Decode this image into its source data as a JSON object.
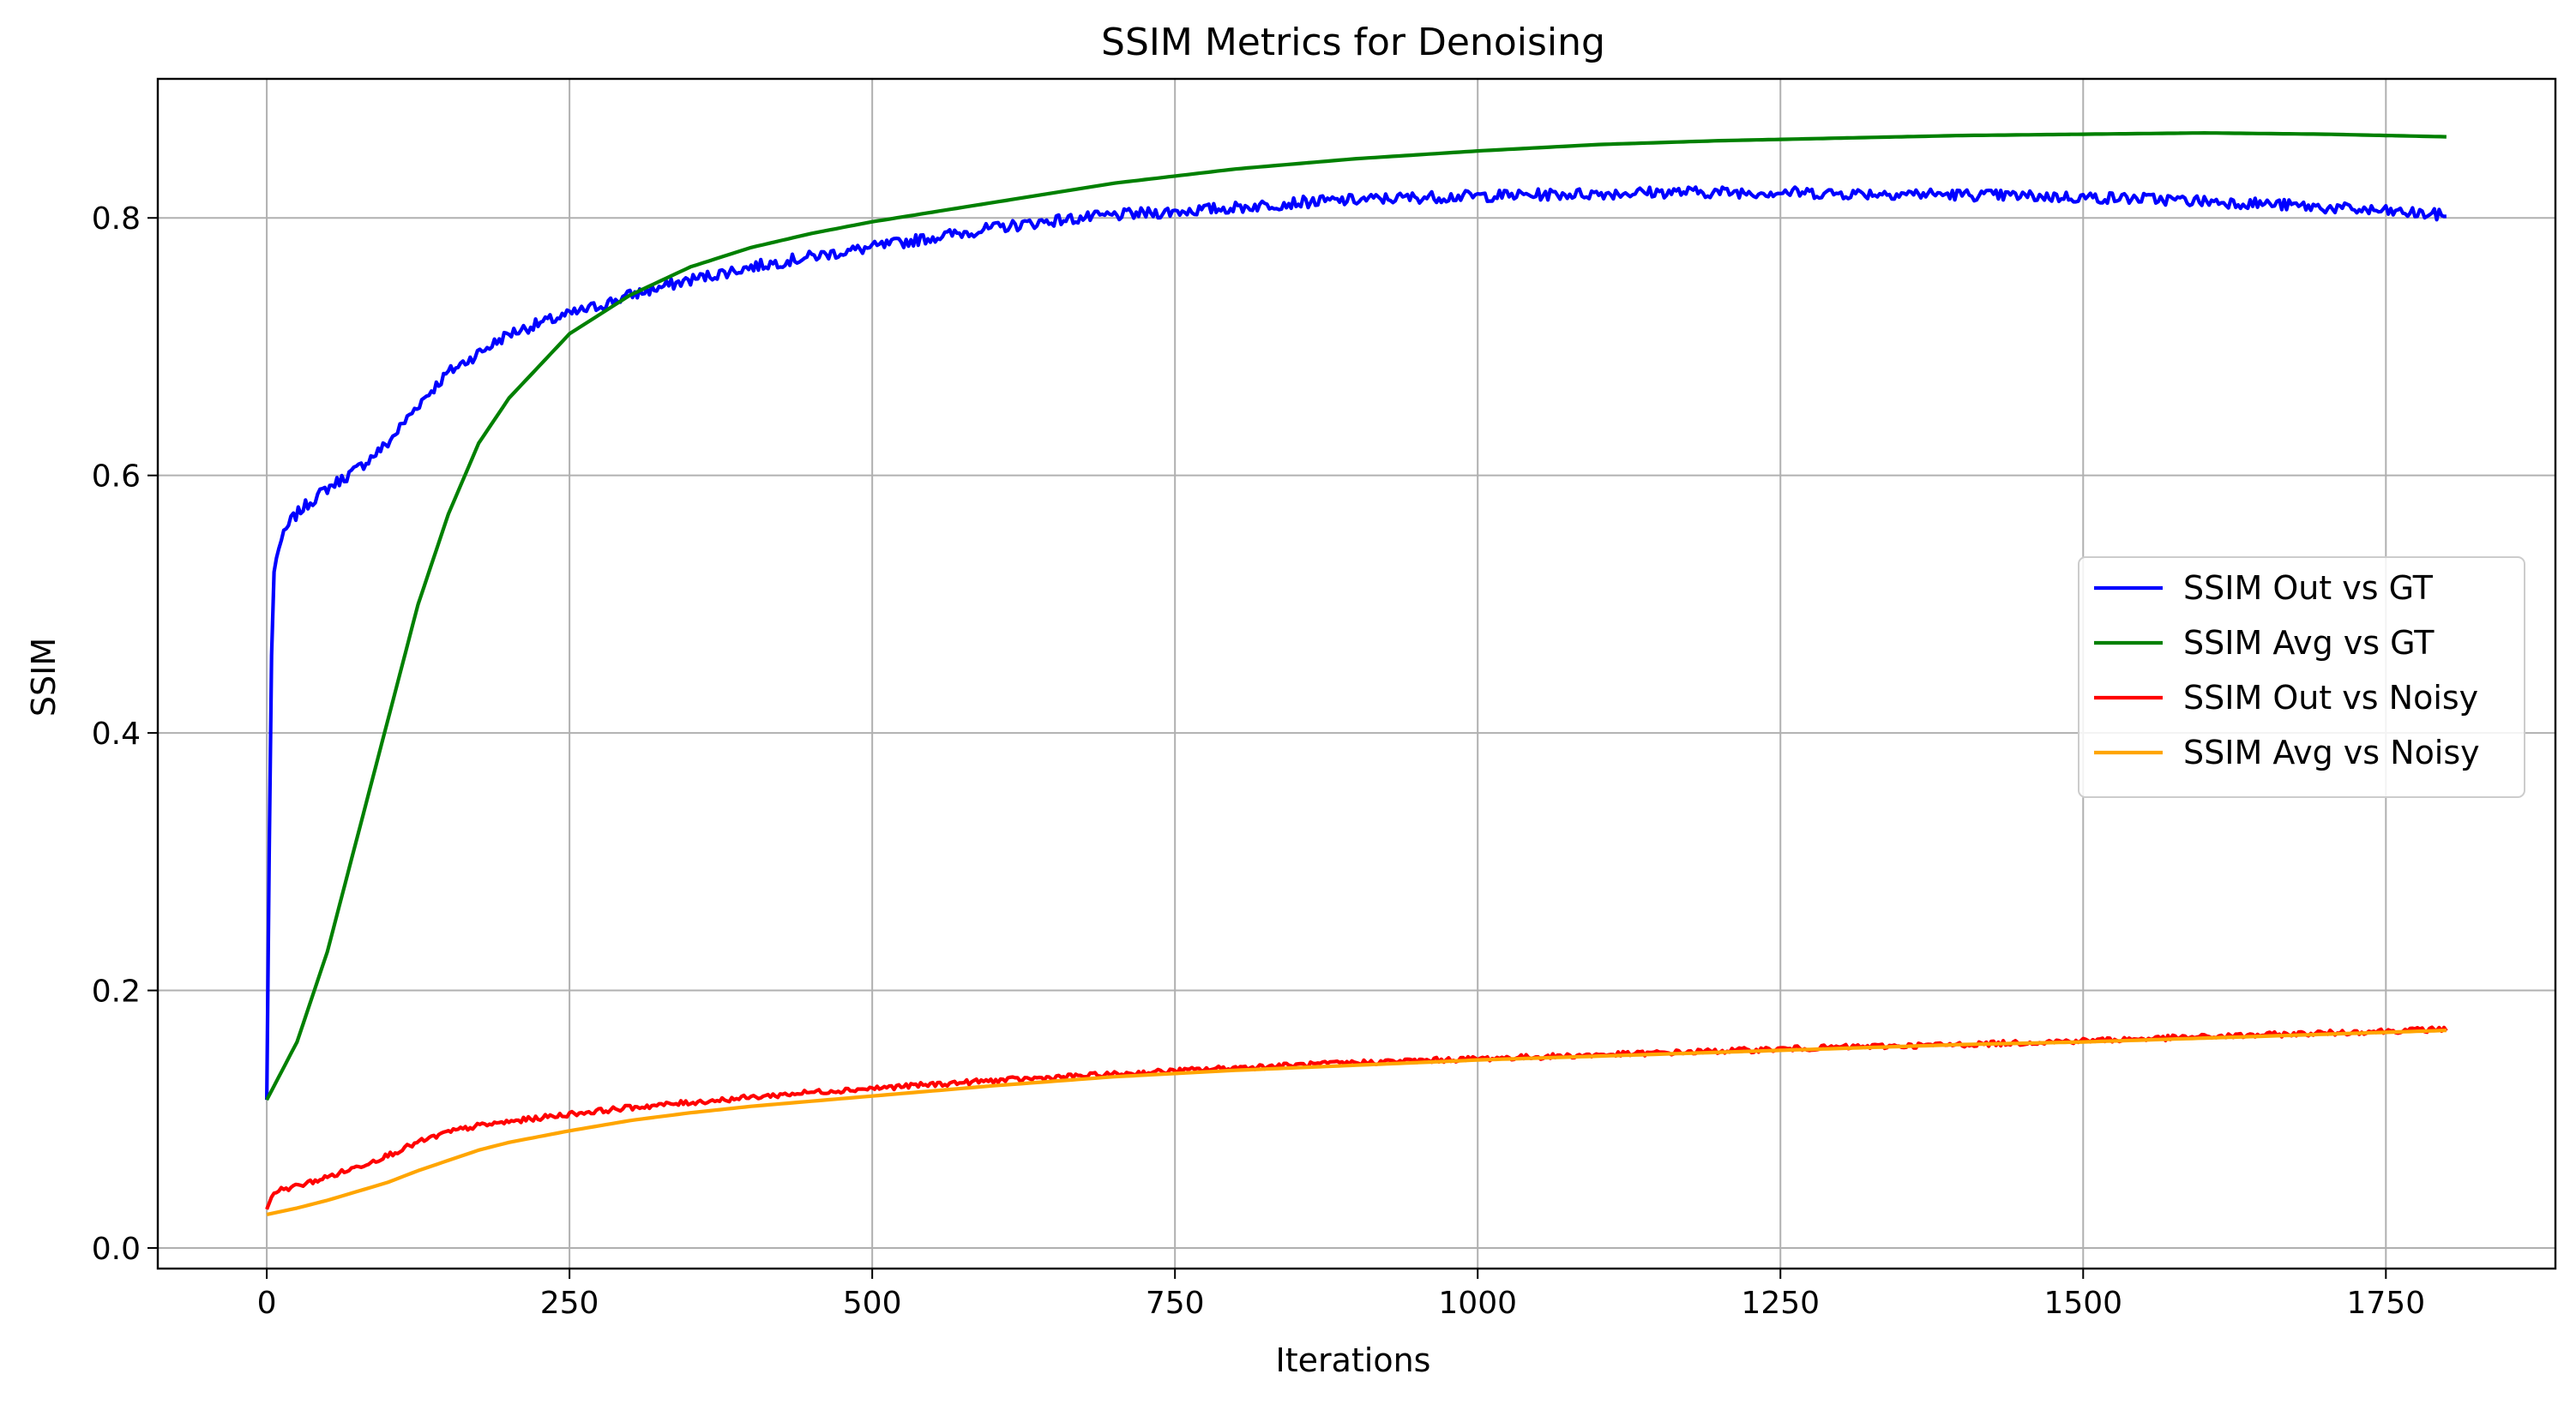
{
  "chart_data": {
    "type": "line",
    "title": "SSIM Metrics for Denoising",
    "xlabel": "Iterations",
    "ylabel": "SSIM",
    "xlim": [
      -90,
      1890
    ],
    "ylim": [
      -0.016,
      0.908
    ],
    "xticks": [
      0,
      250,
      500,
      750,
      1000,
      1250,
      1500,
      1750
    ],
    "yticks": [
      0.0,
      0.2,
      0.4,
      0.6,
      0.8
    ],
    "xtick_labels": [
      "0",
      "250",
      "500",
      "750",
      "1000",
      "1250",
      "1500",
      "1750"
    ],
    "ytick_labels": [
      "0.0",
      "0.2",
      "0.4",
      "0.6",
      "0.8"
    ],
    "grid": true,
    "legend_position": "center-right",
    "series": [
      {
        "name": "SSIM Out vs GT",
        "color": "#0000ff",
        "noisy": true,
        "x": [
          0,
          3,
          5,
          10,
          20,
          30,
          50,
          75,
          100,
          125,
          150,
          175,
          200,
          225,
          250,
          275,
          300,
          350,
          400,
          450,
          500,
          550,
          600,
          650,
          700,
          750,
          800,
          850,
          900,
          950,
          1000,
          1050,
          1100,
          1150,
          1200,
          1250,
          1300,
          1350,
          1400,
          1450,
          1500,
          1550,
          1600,
          1650,
          1700,
          1750,
          1800
        ],
        "y": [
          0.115,
          0.4,
          0.52,
          0.545,
          0.565,
          0.575,
          0.59,
          0.605,
          0.625,
          0.655,
          0.68,
          0.695,
          0.71,
          0.718,
          0.725,
          0.732,
          0.74,
          0.752,
          0.762,
          0.77,
          0.777,
          0.785,
          0.792,
          0.798,
          0.802,
          0.805,
          0.808,
          0.812,
          0.814,
          0.816,
          0.817,
          0.818,
          0.819,
          0.82,
          0.82,
          0.82,
          0.819,
          0.819,
          0.818,
          0.817,
          0.816,
          0.815,
          0.813,
          0.811,
          0.808,
          0.805,
          0.802
        ]
      },
      {
        "name": "SSIM Avg vs GT",
        "color": "#008000",
        "noisy": false,
        "x": [
          0,
          25,
          50,
          75,
          100,
          125,
          150,
          175,
          200,
          250,
          300,
          350,
          400,
          450,
          500,
          600,
          700,
          800,
          900,
          1000,
          1100,
          1200,
          1300,
          1400,
          1500,
          1600,
          1700,
          1800
        ],
        "y": [
          0.115,
          0.16,
          0.23,
          0.32,
          0.41,
          0.5,
          0.57,
          0.625,
          0.66,
          0.71,
          0.74,
          0.762,
          0.777,
          0.788,
          0.797,
          0.812,
          0.827,
          0.838,
          0.846,
          0.852,
          0.857,
          0.86,
          0.862,
          0.864,
          0.865,
          0.866,
          0.865,
          0.863
        ]
      },
      {
        "name": "SSIM Out vs Noisy",
        "color": "#ff0000",
        "noisy": true,
        "x": [
          0,
          5,
          10,
          25,
          50,
          75,
          100,
          125,
          150,
          175,
          200,
          250,
          300,
          350,
          400,
          450,
          500,
          600,
          700,
          800,
          900,
          1000,
          1100,
          1200,
          1300,
          1400,
          1500,
          1600,
          1700,
          1800
        ],
        "y": [
          0.03,
          0.042,
          0.045,
          0.048,
          0.055,
          0.063,
          0.072,
          0.082,
          0.09,
          0.095,
          0.098,
          0.104,
          0.109,
          0.113,
          0.117,
          0.121,
          0.124,
          0.13,
          0.135,
          0.14,
          0.144,
          0.147,
          0.15,
          0.153,
          0.156,
          0.158,
          0.161,
          0.164,
          0.167,
          0.17
        ]
      },
      {
        "name": "SSIM Avg vs Noisy",
        "color": "#ffa500",
        "noisy": false,
        "x": [
          0,
          25,
          50,
          75,
          100,
          125,
          150,
          175,
          200,
          250,
          300,
          350,
          400,
          450,
          500,
          600,
          700,
          800,
          900,
          1000,
          1100,
          1200,
          1300,
          1400,
          1500,
          1600,
          1700,
          1800
        ],
        "y": [
          0.026,
          0.031,
          0.037,
          0.044,
          0.051,
          0.06,
          0.068,
          0.076,
          0.082,
          0.091,
          0.099,
          0.105,
          0.11,
          0.114,
          0.118,
          0.126,
          0.133,
          0.138,
          0.142,
          0.146,
          0.149,
          0.152,
          0.155,
          0.158,
          0.16,
          0.163,
          0.166,
          0.169
        ]
      }
    ]
  }
}
